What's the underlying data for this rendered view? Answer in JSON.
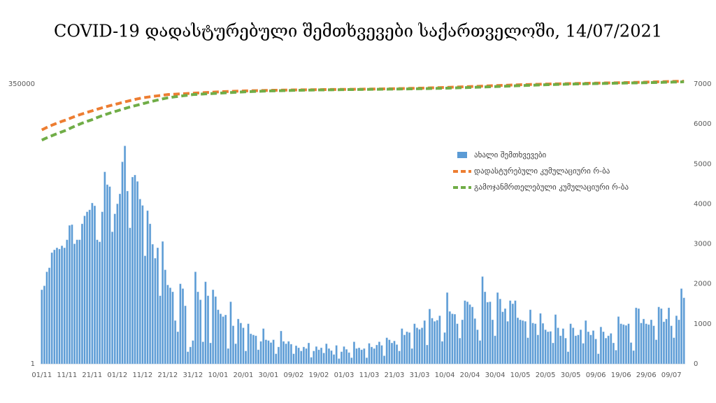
{
  "chart_data": {
    "type": "bar",
    "title": "COVID-19 დადასტურებული შემთხვევები საქართველოში, 14/07/2021",
    "categories": [
      "01/11",
      null,
      null,
      null,
      null,
      null,
      null,
      null,
      null,
      null,
      "11/11",
      null,
      null,
      null,
      null,
      null,
      null,
      null,
      null,
      null,
      "21/11",
      null,
      null,
      null,
      null,
      null,
      null,
      null,
      null,
      null,
      "01/12",
      null,
      null,
      null,
      null,
      null,
      null,
      null,
      null,
      null,
      "11/12",
      null,
      null,
      null,
      null,
      null,
      null,
      null,
      null,
      null,
      "21/12",
      null,
      null,
      null,
      null,
      null,
      null,
      null,
      null,
      null,
      "31/12",
      null,
      null,
      null,
      null,
      null,
      null,
      null,
      null,
      null,
      "10/01",
      null,
      null,
      null,
      null,
      null,
      null,
      null,
      null,
      null,
      "20/01",
      null,
      null,
      null,
      null,
      null,
      null,
      null,
      null,
      null,
      "30/01",
      null,
      null,
      null,
      null,
      null,
      null,
      null,
      null,
      null,
      "09/02",
      null,
      null,
      null,
      null,
      null,
      null,
      null,
      null,
      null,
      "19/02",
      null,
      null,
      null,
      null,
      null,
      null,
      null,
      null,
      null,
      "01/03",
      null,
      null,
      null,
      null,
      null,
      null,
      null,
      null,
      null,
      "11/03",
      null,
      null,
      null,
      null,
      null,
      null,
      null,
      null,
      null,
      "21/03",
      null,
      null,
      null,
      null,
      null,
      null,
      null,
      null,
      null,
      "31/03",
      null,
      null,
      null,
      null,
      null,
      null,
      null,
      null,
      null,
      "10/04",
      null,
      null,
      null,
      null,
      null,
      null,
      null,
      null,
      null,
      "20/04",
      null,
      null,
      null,
      null,
      null,
      null,
      null,
      null,
      null,
      "30/04",
      null,
      null,
      null,
      null,
      null,
      null,
      null,
      null,
      null,
      "10/05",
      null,
      null,
      null,
      null,
      null,
      null,
      null,
      null,
      null,
      "20/05",
      null,
      null,
      null,
      null,
      null,
      null,
      null,
      null,
      null,
      "30/05",
      null,
      null,
      null,
      null,
      null,
      null,
      null,
      null,
      null,
      "09/06",
      null,
      null,
      null,
      null,
      null,
      null,
      null,
      null,
      null,
      "19/06",
      null,
      null,
      null,
      null,
      null,
      null,
      null,
      null,
      null,
      "29/06",
      null,
      null,
      null,
      null,
      null,
      null,
      null,
      null,
      null,
      "09/07",
      null,
      null,
      null,
      null,
      null
    ],
    "series": [
      {
        "name": "ახალი შემთხვევები",
        "type": "bar",
        "axis": "y2",
        "color": "#5b9bd5",
        "values": [
          1850,
          1950,
          2300,
          2400,
          2780,
          2850,
          2900,
          2870,
          2950,
          2900,
          3100,
          3460,
          3480,
          3000,
          3100,
          3100,
          3500,
          3700,
          3800,
          3850,
          4020,
          3950,
          3100,
          3050,
          3800,
          4800,
          4480,
          4430,
          3300,
          3750,
          4000,
          4250,
          5050,
          5450,
          4320,
          3400,
          4670,
          4720,
          4560,
          4120,
          3960,
          2700,
          3830,
          3500,
          2990,
          2640,
          2900,
          1700,
          3060,
          2350,
          1970,
          1900,
          1800,
          1080,
          800,
          2000,
          1880,
          1450,
          300,
          420,
          580,
          2300,
          1800,
          1600,
          550,
          2050,
          1700,
          520,
          1850,
          1680,
          1350,
          1250,
          1180,
          1220,
          380,
          1550,
          950,
          500,
          1120,
          1020,
          900,
          320,
          1000,
          750,
          720,
          700,
          350,
          560,
          880,
          600,
          580,
          530,
          600,
          250,
          420,
          820,
          560,
          500,
          560,
          490,
          250,
          450,
          400,
          320,
          420,
          380,
          520,
          160,
          320,
          430,
          350,
          400,
          270,
          500,
          380,
          330,
          230,
          460,
          130,
          300,
          430,
          360,
          280,
          150,
          550,
          380,
          400,
          350,
          380,
          150,
          510,
          420,
          380,
          470,
          550,
          460,
          200,
          650,
          600,
          520,
          570,
          480,
          320,
          880,
          720,
          800,
          780,
          380,
          1000,
          900,
          860,
          900,
          1080,
          470,
          1370,
          1140,
          1060,
          1090,
          1200,
          560,
          780,
          1780,
          1310,
          1250,
          1240,
          1000,
          640,
          1100,
          1580,
          1550,
          1480,
          1420,
          1130,
          850,
          580,
          2180,
          1800,
          1540,
          1550,
          1100,
          700,
          1780,
          1620,
          1300,
          1380,
          1060,
          1580,
          1500,
          1580,
          1150,
          1100,
          1080,
          1060,
          650,
          1350,
          1020,
          1000,
          720,
          1260,
          1010,
          850,
          800,
          810,
          520,
          1230,
          900,
          700,
          880,
          640,
          300,
          1000,
          900,
          700,
          720,
          850,
          510,
          1080,
          800,
          720,
          830,
          620,
          250,
          920,
          800,
          640,
          700,
          760,
          520,
          340,
          1180,
          1000,
          980,
          960,
          1000,
          530,
          330,
          1400,
          1380,
          1020,
          1120,
          1000,
          980,
          1100,
          950,
          600,
          1420,
          1380,
          1050,
          1120,
          1400,
          950,
          650,
          1200,
          1100,
          1880,
          1650
        ]
      },
      {
        "name": "დადასტურებული კუმულაციური რ-ბა",
        "type": "line",
        "axis": "y",
        "color": "#ed7d31",
        "values": [
          43000,
          45600,
          48200,
          50700,
          53300,
          55900,
          58500,
          61000,
          63600,
          66200,
          68800,
          72200,
          75600,
          79000,
          82400,
          85800,
          89200,
          92600,
          96000,
          99500,
          102800,
          106700,
          110600,
          114400,
          118300,
          122200,
          126000,
          129900,
          133800,
          137700,
          141500,
          146000,
          150400,
          154900,
          159300,
          163800,
          168200,
          172700,
          177200,
          181600,
          186100,
          189000,
          192000,
          195000,
          197900,
          200900,
          203800,
          206800,
          209800,
          212700,
          215700,
          217100,
          218400,
          219800,
          221100,
          222500,
          223900,
          225200,
          226600,
          227900,
          229300,
          230800,
          232200,
          233700,
          235100,
          236600,
          238100,
          239500,
          241000,
          242500,
          243900,
          245000,
          246000,
          247100,
          248100,
          249200,
          250200,
          251300,
          252300,
          253400,
          254400,
          255100,
          255800,
          256500,
          257200,
          257800,
          258500,
          259200,
          259900,
          260600,
          261200,
          261800,
          262300,
          262800,
          263300,
          263900,
          264400,
          264900,
          265500,
          266000,
          266500,
          266900,
          267300,
          267600,
          268000,
          268400,
          268700,
          269100,
          269500,
          269800,
          270200,
          270500,
          270900,
          271200,
          271500,
          271900,
          272200,
          272500,
          272900,
          273200,
          273500,
          273900,
          274200,
          274600,
          274900,
          275200,
          275600,
          275900,
          276300,
          276600,
          277000,
          277400,
          277900,
          278400,
          278900,
          279300,
          279800,
          280300,
          280800,
          281300,
          281700,
          282400,
          283100,
          283800,
          284500,
          285100,
          285800,
          286500,
          287200,
          287900,
          288600,
          289500,
          290500,
          291500,
          292400,
          293400,
          294400,
          295400,
          296300,
          297300,
          298300,
          299500,
          300700,
          302000,
          303200,
          304400,
          305600,
          306800,
          308100,
          309300,
          310500,
          311900,
          313200,
          314600,
          316000,
          317300,
          318700,
          320000,
          321400,
          322800,
          324100,
          325500,
          326900,
          328200,
          329600,
          331000,
          332300,
          333700,
          335100,
          336400,
          337800,
          338800,
          339800,
          340900,
          341900,
          342900,
          343900,
          345000,
          346000,
          347000,
          348000,
          348800,
          349600,
          350300,
          351100,
          351900,
          352600,
          353400,
          354100,
          354900,
          355700,
          356500,
          357300,
          358100,
          358900,
          359700,
          360500,
          361300,
          362200,
          363000,
          363800,
          364500,
          365100,
          365800,
          366500,
          367100,
          367800,
          368500,
          369200,
          369800,
          370500,
          371500,
          372500,
          373400,
          374400,
          375400,
          376300,
          377300,
          378300,
          379300,
          380200,
          381400,
          382500,
          383700,
          384800,
          386000,
          387100,
          388300,
          389400,
          390600,
          391700,
          392900,
          394100,
          395200,
          396400,
          397500
        ]
      },
      {
        "name": "გამოჯანმრთელებული კუმულაციური რ-ბა",
        "type": "line",
        "axis": "y",
        "color": "#70ad47",
        "values": [
          27000,
          28500,
          30000,
          31500,
          33000,
          34600,
          36200,
          37800,
          39500,
          41200,
          43000,
          45600,
          48200,
          50700,
          53300,
          55900,
          58500,
          61000,
          63600,
          66200,
          68800,
          72200,
          75600,
          79000,
          82400,
          85800,
          89200,
          92600,
          96000,
          99500,
          102800,
          106700,
          110600,
          114400,
          118300,
          122200,
          126000,
          129900,
          133800,
          137700,
          141500,
          146000,
          150400,
          154900,
          159300,
          163800,
          168200,
          172700,
          177200,
          181600,
          186100,
          189000,
          192000,
          195000,
          197900,
          200900,
          203800,
          206800,
          209800,
          212700,
          215700,
          217100,
          218400,
          219800,
          221100,
          222500,
          223900,
          225200,
          226600,
          227900,
          229300,
          230800,
          232200,
          233700,
          235100,
          236600,
          238100,
          239500,
          241000,
          242500,
          243900,
          245000,
          246000,
          247100,
          248100,
          249200,
          250200,
          251300,
          252300,
          253400,
          254400,
          255100,
          255800,
          256500,
          257200,
          257800,
          258500,
          259200,
          259900,
          260600,
          261200,
          261800,
          262300,
          262800,
          263300,
          263900,
          264400,
          264900,
          265500,
          266000,
          266500,
          266900,
          267300,
          267600,
          268000,
          268400,
          268700,
          269100,
          269500,
          269800,
          270200,
          270500,
          270900,
          271200,
          271500,
          271900,
          272200,
          272500,
          272900,
          273200,
          273500,
          273900,
          274200,
          274600,
          274900,
          275200,
          275600,
          275900,
          276300,
          276600,
          277000,
          277400,
          277900,
          278400,
          278900,
          279300,
          279800,
          280300,
          280800,
          281300,
          281700,
          282400,
          283100,
          283800,
          284500,
          285100,
          285800,
          286500,
          287200,
          287900,
          288600,
          289500,
          290500,
          291500,
          292400,
          293400,
          294400,
          295400,
          296300,
          297300,
          298300,
          299500,
          300700,
          302000,
          303200,
          304400,
          305600,
          306800,
          308100,
          309300,
          310500,
          311900,
          313200,
          314600,
          316000,
          317300,
          318700,
          320000,
          321400,
          322800,
          324100,
          325500,
          326900,
          328200,
          329600,
          331000,
          332300,
          333700,
          335100,
          336400,
          337800,
          338800,
          339800,
          340900,
          341900,
          342900,
          343900,
          345000,
          346000,
          347000,
          348000,
          348800,
          349600,
          350300,
          351100,
          351900,
          352600,
          353400,
          354100,
          354900,
          355700,
          356500,
          357300,
          358100,
          358900,
          359700,
          360500,
          361300,
          362200,
          363000,
          363800,
          364500,
          365100,
          365800,
          366500,
          367100,
          367800,
          368500,
          369200,
          369800,
          370500,
          371500,
          372500,
          373400,
          374400,
          375400,
          376300,
          377300,
          378300,
          379300,
          380200,
          381400,
          382500,
          383700,
          384800,
          386000
        ]
      }
    ],
    "ylim": [
      1,
      350000
    ],
    "yticks": [
      1,
      350000
    ],
    "y_log": true,
    "y2lim": [
      0,
      7000
    ],
    "y2ticks": [
      0,
      1000,
      2000,
      3000,
      4000,
      5000,
      6000,
      7000
    ],
    "grid": false,
    "legend": "upper right"
  }
}
